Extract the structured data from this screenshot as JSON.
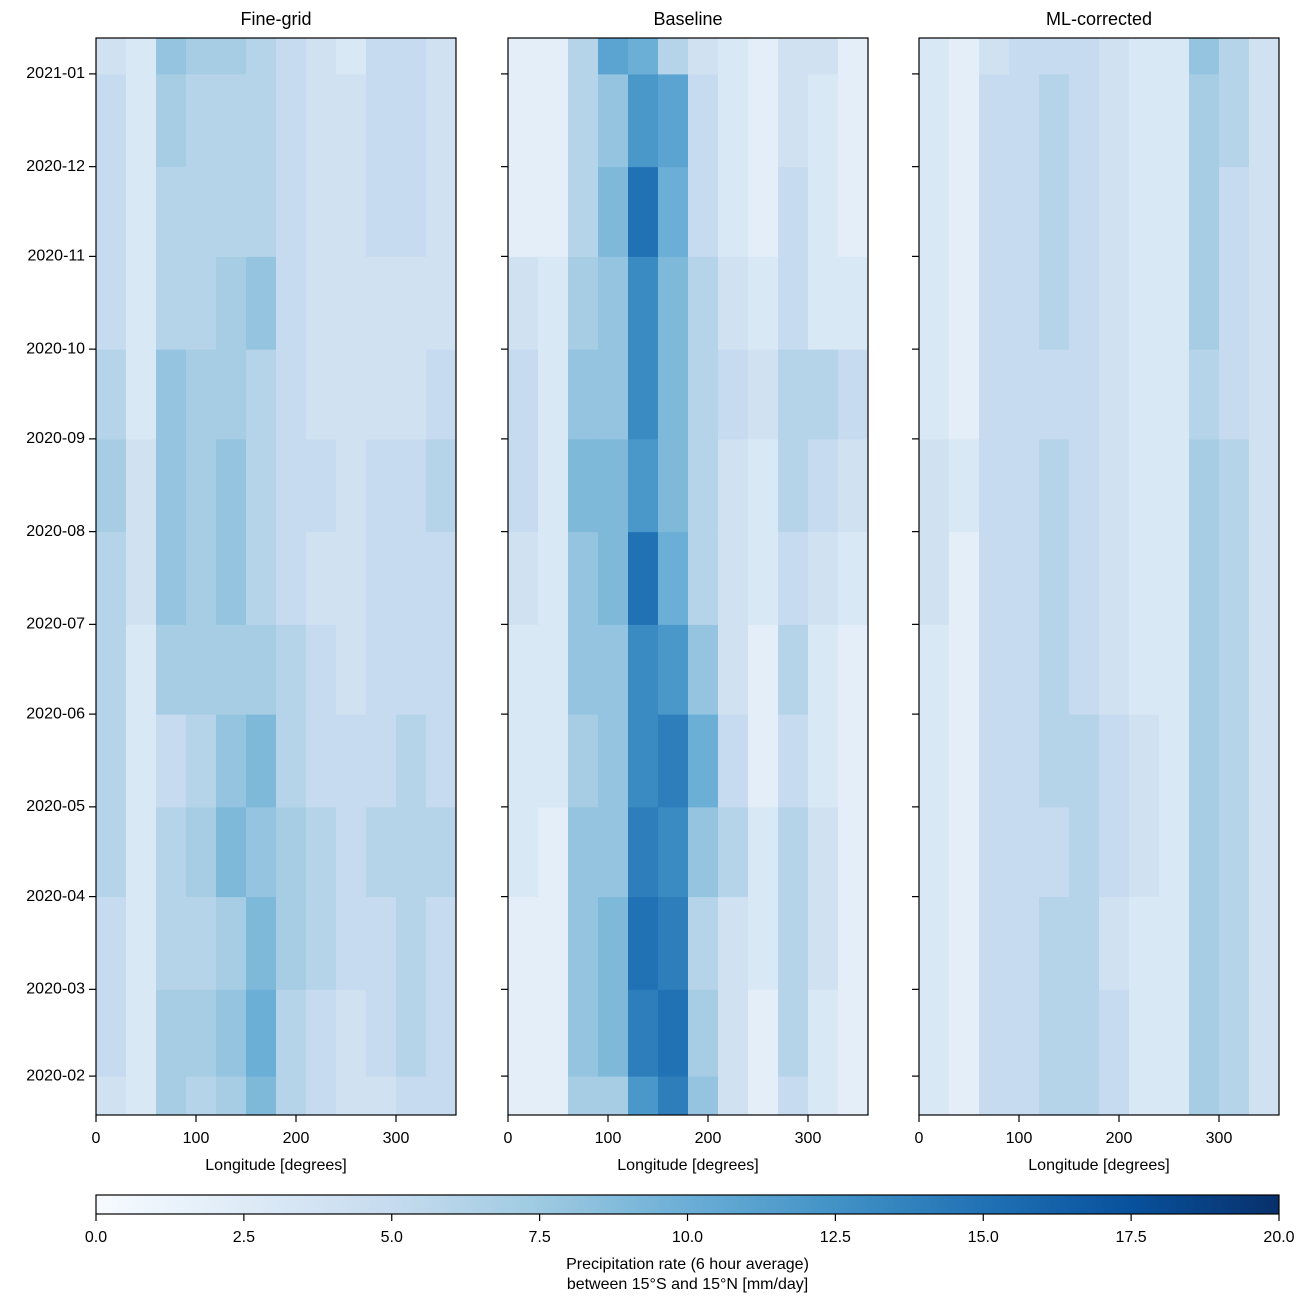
{
  "chart_data": [
    {
      "type": "heatmap",
      "title": "Fine-grid",
      "xlabel": "Longitude [degrees]",
      "xlim": [
        0,
        360
      ],
      "xticks": [
        0,
        100,
        200,
        300
      ],
      "ylim": [
        "2020-01-19",
        "2021-01-13"
      ],
      "yticks": [
        "2020-02",
        "2020-03",
        "2020-04",
        "2020-05",
        "2020-06",
        "2020-07",
        "2020-08",
        "2020-09",
        "2020-10",
        "2020-11",
        "2020-12",
        "2021-01"
      ],
      "x_bins": [
        0,
        30,
        60,
        90,
        120,
        150,
        180,
        210,
        240,
        270,
        300,
        330,
        360
      ],
      "y_bins": [
        "2020-01-19",
        "2020-02",
        "2020-03",
        "2020-04",
        "2020-05",
        "2020-06",
        "2020-07",
        "2020-08",
        "2020-09",
        "2020-10",
        "2020-11",
        "2020-12",
        "2021-01",
        "2021-01-13"
      ],
      "values": [
        [
          4,
          3,
          7,
          6,
          7,
          9,
          6,
          5,
          4,
          4,
          5,
          5
        ],
        [
          5,
          3,
          7,
          7,
          8,
          10,
          6,
          5,
          4,
          5,
          6,
          5
        ],
        [
          5,
          3,
          6,
          6,
          7,
          9,
          7,
          6,
          5,
          5,
          6,
          5
        ],
        [
          6,
          3,
          6,
          7,
          9,
          8,
          7,
          6,
          5,
          6,
          6,
          6
        ],
        [
          6,
          3,
          5,
          6,
          8,
          9,
          6,
          5,
          5,
          5,
          6,
          5
        ],
        [
          6,
          3,
          7,
          7,
          7,
          7,
          6,
          5,
          4,
          5,
          5,
          5
        ],
        [
          6,
          4,
          8,
          7,
          8,
          6,
          5,
          4,
          4,
          5,
          5,
          5
        ],
        [
          7,
          4,
          8,
          7,
          8,
          6,
          5,
          5,
          4,
          5,
          5,
          6
        ],
        [
          6,
          3,
          8,
          7,
          7,
          6,
          5,
          4,
          4,
          4,
          4,
          5
        ],
        [
          5,
          3,
          6,
          6,
          7,
          8,
          5,
          4,
          4,
          4,
          4,
          4
        ],
        [
          5,
          3,
          6,
          6,
          6,
          6,
          5,
          4,
          4,
          5,
          5,
          4
        ],
        [
          5,
          3,
          7,
          6,
          6,
          6,
          5,
          4,
          4,
          5,
          5,
          4
        ],
        [
          4,
          3,
          8,
          7,
          7,
          6,
          5,
          4,
          3,
          5,
          5,
          4
        ]
      ]
    },
    {
      "type": "heatmap",
      "title": "Baseline",
      "xlabel": "Longitude [degrees]",
      "xlim": [
        0,
        360
      ],
      "xticks": [
        0,
        100,
        200,
        300
      ],
      "ylim": [
        "2020-01-19",
        "2021-01-13"
      ],
      "sharey": true,
      "x_bins": [
        0,
        30,
        60,
        90,
        120,
        150,
        180,
        210,
        240,
        270,
        300,
        330,
        360
      ],
      "y_bins": [
        "2020-01-19",
        "2020-02",
        "2020-03",
        "2020-04",
        "2020-05",
        "2020-06",
        "2020-07",
        "2020-08",
        "2020-09",
        "2020-10",
        "2020-11",
        "2020-12",
        "2021-01",
        "2021-01-13"
      ],
      "values": [
        [
          2,
          2,
          7,
          7,
          12,
          14,
          8,
          4,
          2,
          5,
          3,
          2
        ],
        [
          2,
          2,
          8,
          9,
          14,
          15,
          7,
          4,
          2,
          6,
          3,
          2
        ],
        [
          2,
          2,
          8,
          9,
          15,
          14,
          6,
          4,
          3,
          6,
          4,
          2
        ],
        [
          3,
          2,
          8,
          8,
          14,
          13,
          8,
          6,
          3,
          6,
          4,
          2
        ],
        [
          3,
          3,
          7,
          8,
          13,
          14,
          10,
          5,
          2,
          5,
          3,
          2
        ],
        [
          3,
          3,
          8,
          8,
          13,
          12,
          8,
          4,
          2,
          6,
          3,
          2
        ],
        [
          4,
          3,
          8,
          9,
          15,
          10,
          6,
          4,
          3,
          5,
          4,
          3
        ],
        [
          5,
          3,
          9,
          9,
          12,
          9,
          6,
          4,
          3,
          6,
          5,
          4
        ],
        [
          5,
          3,
          8,
          8,
          13,
          9,
          6,
          5,
          4,
          6,
          6,
          5
        ],
        [
          4,
          3,
          7,
          8,
          13,
          9,
          6,
          4,
          3,
          5,
          3,
          3
        ],
        [
          2,
          2,
          6,
          9,
          15,
          10,
          5,
          3,
          2,
          5,
          3,
          2
        ],
        [
          2,
          2,
          6,
          8,
          12,
          11,
          5,
          3,
          2,
          4,
          3,
          2
        ],
        [
          2,
          2,
          6,
          11,
          10,
          6,
          4,
          3,
          2,
          4,
          4,
          2
        ]
      ]
    },
    {
      "type": "heatmap",
      "title": "ML-corrected",
      "xlabel": "Longitude [degrees]",
      "xlim": [
        0,
        360
      ],
      "xticks": [
        0,
        100,
        200,
        300
      ],
      "ylim": [
        "2020-01-19",
        "2021-01-13"
      ],
      "sharey": true,
      "x_bins": [
        0,
        30,
        60,
        90,
        120,
        150,
        180,
        210,
        240,
        270,
        300,
        330,
        360
      ],
      "y_bins": [
        "2020-01-19",
        "2020-02",
        "2020-03",
        "2020-04",
        "2020-05",
        "2020-06",
        "2020-07",
        "2020-08",
        "2020-09",
        "2020-10",
        "2020-11",
        "2020-12",
        "2021-01",
        "2021-01-13"
      ],
      "values": [
        [
          3,
          2,
          5,
          5,
          6,
          6,
          5,
          3,
          3,
          7,
          6,
          4
        ],
        [
          3,
          2,
          5,
          5,
          6,
          6,
          5,
          3,
          3,
          7,
          6,
          4
        ],
        [
          3,
          2,
          5,
          5,
          6,
          6,
          4,
          3,
          3,
          7,
          6,
          4
        ],
        [
          3,
          2,
          5,
          5,
          5,
          6,
          5,
          4,
          3,
          7,
          6,
          4
        ],
        [
          3,
          2,
          5,
          5,
          6,
          6,
          5,
          4,
          3,
          7,
          6,
          4
        ],
        [
          3,
          2,
          5,
          5,
          6,
          5,
          4,
          3,
          3,
          7,
          6,
          4
        ],
        [
          4,
          2,
          5,
          5,
          6,
          5,
          4,
          3,
          3,
          7,
          6,
          4
        ],
        [
          4,
          3,
          5,
          5,
          6,
          5,
          4,
          3,
          3,
          7,
          6,
          4
        ],
        [
          3,
          2,
          5,
          5,
          5,
          5,
          4,
          3,
          3,
          6,
          5,
          4
        ],
        [
          3,
          2,
          5,
          5,
          6,
          5,
          4,
          3,
          3,
          7,
          5,
          4
        ],
        [
          3,
          2,
          5,
          5,
          6,
          5,
          4,
          3,
          3,
          7,
          5,
          4
        ],
        [
          3,
          2,
          5,
          5,
          6,
          5,
          4,
          3,
          3,
          7,
          6,
          4
        ],
        [
          3,
          2,
          4,
          5,
          5,
          5,
          4,
          3,
          3,
          8,
          6,
          4
        ]
      ]
    }
  ],
  "colorbar": {
    "label": [
      "Precipitation rate (6 hour average)",
      "between 15°S and 15°N [mm/day]"
    ],
    "lim": [
      0,
      20
    ],
    "ticks": [
      {
        "value": 0,
        "label": "0.0"
      },
      {
        "value": 2.5,
        "label": "2.5"
      },
      {
        "value": 5,
        "label": "5.0"
      },
      {
        "value": 7.5,
        "label": "7.5"
      },
      {
        "value": 10,
        "label": "10.0"
      },
      {
        "value": 12.5,
        "label": "12.5"
      },
      {
        "value": 15,
        "label": "15.0"
      },
      {
        "value": 17.5,
        "label": "17.5"
      },
      {
        "value": 20,
        "label": "20.0"
      }
    ],
    "colors": [
      "#f7fbff",
      "#deebf7",
      "#c6dbef",
      "#9ecae1",
      "#6baed6",
      "#4292c6",
      "#2171b5",
      "#08519c",
      "#08306b"
    ]
  }
}
